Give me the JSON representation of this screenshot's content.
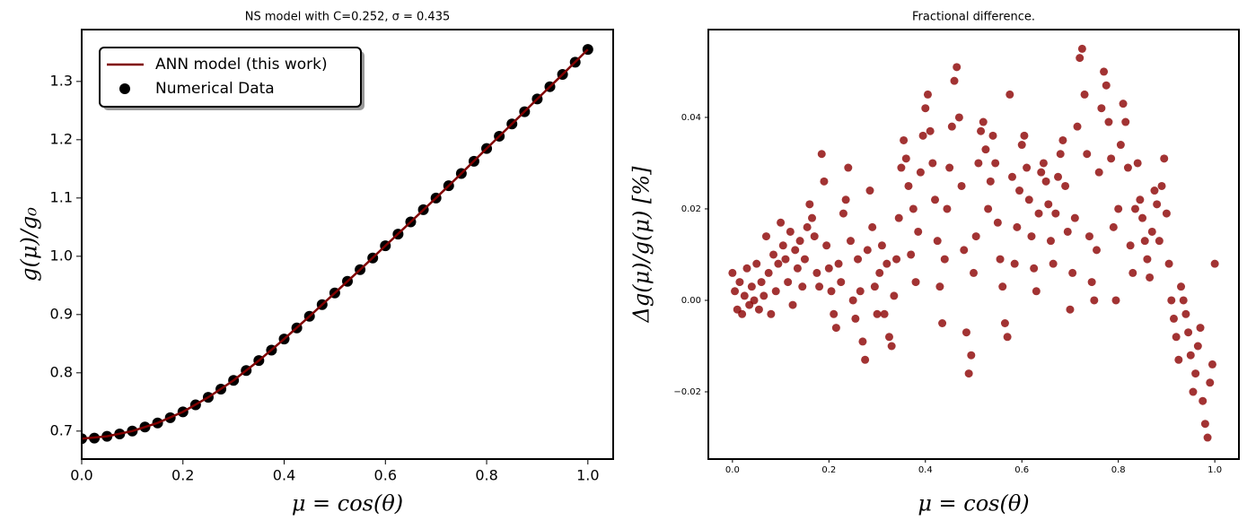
{
  "chart_data": [
    {
      "type": "line",
      "title": "NS model with C=0.252, σ = 0.435",
      "xlabel": "μ = cos(θ)",
      "ylabel": "g(μ)/g₀",
      "xlim": [
        0,
        1.05
      ],
      "ylim": [
        0.652,
        1.389
      ],
      "xticks": [
        {
          "value": 0,
          "label": "0.0"
        },
        0.2,
        0.4,
        0.6,
        0.8,
        {
          "value": 1,
          "label": "1.0"
        }
      ],
      "yticks": [
        0.7,
        0.8,
        0.9,
        {
          "value": 1,
          "label": "1.0"
        },
        1.1,
        1.2,
        1.3
      ],
      "legend": "upper left",
      "series": [
        {
          "name": "ANN model (this work)",
          "type": "line",
          "color": "#800000",
          "x": [
            0,
            0.05,
            0.1,
            0.15,
            0.2,
            0.25,
            0.3,
            0.35,
            0.4,
            0.45,
            0.5,
            0.55,
            0.6,
            0.65,
            0.7,
            0.75,
            0.8,
            0.85,
            0.9,
            0.95,
            1
          ],
          "values": [
            0.687,
            0.691,
            0.7,
            0.714,
            0.733,
            0.758,
            0.787,
            0.821,
            0.858,
            0.897,
            0.937,
            0.977,
            1.018,
            1.059,
            1.1,
            1.142,
            1.185,
            1.227,
            1.27,
            1.312,
            1.355
          ]
        },
        {
          "name": "Numerical Data",
          "type": "scatter",
          "color": "#000000",
          "x": [
            0,
            0.025,
            0.05,
            0.075,
            0.1,
            0.125,
            0.15,
            0.175,
            0.2,
            0.225,
            0.25,
            0.275,
            0.3,
            0.325,
            0.35,
            0.375,
            0.4,
            0.425,
            0.45,
            0.475,
            0.5,
            0.525,
            0.55,
            0.575,
            0.6,
            0.625,
            0.65,
            0.675,
            0.7,
            0.725,
            0.75,
            0.775,
            0.8,
            0.825,
            0.85,
            0.875,
            0.9,
            0.925,
            0.95,
            0.975,
            1
          ],
          "values": [
            0.687,
            0.688,
            0.691,
            0.695,
            0.7,
            0.707,
            0.714,
            0.723,
            0.733,
            0.745,
            0.758,
            0.772,
            0.787,
            0.804,
            0.821,
            0.839,
            0.858,
            0.877,
            0.897,
            0.917,
            0.937,
            0.957,
            0.977,
            0.997,
            1.018,
            1.038,
            1.059,
            1.08,
            1.1,
            1.121,
            1.142,
            1.163,
            1.185,
            1.206,
            1.227,
            1.248,
            1.27,
            1.291,
            1.312,
            1.333,
            1.355
          ]
        }
      ]
    },
    {
      "type": "scatter",
      "title": "Fractional difference.",
      "xlabel": "μ = cos(θ)",
      "ylabel": "Δg(μ)/g(μ)  [%]",
      "xlim": [
        -0.05,
        1.05
      ],
      "ylim": [
        -0.0347,
        0.0592
      ],
      "xticks": [
        {
          "value": 0,
          "label": "0.0"
        },
        0.2,
        0.4,
        0.6,
        0.8,
        {
          "value": 1,
          "label": "1.0"
        }
      ],
      "yticks": [
        {
          "value": -0.02,
          "label": "−0.02"
        },
        {
          "value": 0,
          "label": "0.00"
        },
        0.02,
        0.04
      ],
      "series": [
        {
          "type": "scatter",
          "color": "#8b0000",
          "x": [
            0,
            0.005,
            0.01,
            0.015,
            0.02,
            0.025,
            0.03,
            0.035,
            0.04,
            0.045,
            0.05,
            0.055,
            0.06,
            0.065,
            0.07,
            0.075,
            0.08,
            0.085,
            0.09,
            0.095,
            0.1,
            0.105,
            0.11,
            0.115,
            0.12,
            0.125,
            0.13,
            0.135,
            0.14,
            0.145,
            0.15,
            0.155,
            0.16,
            0.165,
            0.17,
            0.175,
            0.18,
            0.185,
            0.19,
            0.195,
            0.2,
            0.205,
            0.21,
            0.215,
            0.22,
            0.225,
            0.23,
            0.235,
            0.24,
            0.245,
            0.25,
            0.255,
            0.26,
            0.265,
            0.27,
            0.275,
            0.28,
            0.285,
            0.29,
            0.295,
            0.3,
            0.305,
            0.31,
            0.315,
            0.32,
            0.325,
            0.33,
            0.335,
            0.34,
            0.345,
            0.35,
            0.355,
            0.36,
            0.365,
            0.37,
            0.375,
            0.38,
            0.385,
            0.39,
            0.395,
            0.4,
            0.405,
            0.41,
            0.415,
            0.42,
            0.425,
            0.43,
            0.435,
            0.44,
            0.445,
            0.45,
            0.455,
            0.46,
            0.465,
            0.47,
            0.475,
            0.48,
            0.485,
            0.49,
            0.495,
            0.5,
            0.505,
            0.51,
            0.515,
            0.52,
            0.525,
            0.53,
            0.535,
            0.54,
            0.545,
            0.55,
            0.555,
            0.56,
            0.565,
            0.57,
            0.575,
            0.58,
            0.585,
            0.59,
            0.595,
            0.6,
            0.605,
            0.61,
            0.615,
            0.62,
            0.625,
            0.63,
            0.635,
            0.64,
            0.645,
            0.65,
            0.655,
            0.66,
            0.665,
            0.67,
            0.675,
            0.68,
            0.685,
            0.69,
            0.695,
            0.7,
            0.705,
            0.71,
            0.715,
            0.72,
            0.725,
            0.73,
            0.735,
            0.74,
            0.745,
            0.75,
            0.755,
            0.76,
            0.765,
            0.77,
            0.775,
            0.78,
            0.785,
            0.79,
            0.795,
            0.8,
            0.805,
            0.81,
            0.815,
            0.82,
            0.825,
            0.83,
            0.835,
            0.84,
            0.845,
            0.85,
            0.855,
            0.86,
            0.865,
            0.87,
            0.875,
            0.88,
            0.885,
            0.89,
            0.895,
            0.9,
            0.905,
            0.91,
            0.915,
            0.92,
            0.925,
            0.93,
            0.935,
            0.94,
            0.945,
            0.95,
            0.955,
            0.96,
            0.965,
            0.97,
            0.975,
            0.98,
            0.985,
            0.99,
            0.995,
            1
          ],
          "values": [
            0.006,
            0.002,
            -0.002,
            0.004,
            -0.003,
            0.001,
            0.007,
            -0.001,
            0.003,
            0.0,
            0.008,
            -0.002,
            0.004,
            0.001,
            0.014,
            0.006,
            -0.003,
            0.01,
            0.002,
            0.008,
            0.017,
            0.012,
            0.009,
            0.004,
            0.015,
            -0.001,
            0.011,
            0.007,
            0.013,
            0.003,
            0.009,
            0.016,
            0.021,
            0.018,
            0.014,
            0.006,
            0.003,
            0.032,
            0.026,
            0.012,
            0.007,
            0.002,
            -0.003,
            -0.006,
            0.008,
            0.004,
            0.019,
            0.022,
            0.029,
            0.013,
            0.0,
            -0.004,
            0.009,
            0.002,
            -0.009,
            -0.013,
            0.011,
            0.024,
            0.016,
            0.003,
            -0.003,
            0.006,
            0.012,
            -0.003,
            0.008,
            -0.008,
            -0.01,
            0.001,
            0.009,
            0.018,
            0.029,
            0.035,
            0.031,
            0.025,
            0.01,
            0.02,
            0.004,
            0.015,
            0.028,
            0.036,
            0.042,
            0.045,
            0.037,
            0.03,
            0.022,
            0.013,
            0.003,
            -0.005,
            0.009,
            0.02,
            0.029,
            0.038,
            0.048,
            0.051,
            0.04,
            0.025,
            0.011,
            -0.007,
            -0.016,
            -0.012,
            0.006,
            0.014,
            0.03,
            0.037,
            0.039,
            0.033,
            0.02,
            0.026,
            0.036,
            0.03,
            0.017,
            0.009,
            0.003,
            -0.005,
            -0.008,
            0.045,
            0.027,
            0.008,
            0.016,
            0.024,
            0.034,
            0.036,
            0.029,
            0.022,
            0.014,
            0.007,
            0.002,
            0.019,
            0.028,
            0.03,
            0.026,
            0.021,
            0.013,
            0.008,
            0.019,
            0.027,
            0.032,
            0.035,
            0.025,
            0.015,
            -0.002,
            0.006,
            0.018,
            0.038,
            0.053,
            0.055,
            0.045,
            0.032,
            0.014,
            0.004,
            0.0,
            0.011,
            0.028,
            0.042,
            0.05,
            0.047,
            0.039,
            0.031,
            0.016,
            0.0,
            0.02,
            0.034,
            0.043,
            0.039,
            0.029,
            0.012,
            0.006,
            0.02,
            0.03,
            0.022,
            0.018,
            0.013,
            0.009,
            0.005,
            0.015,
            0.024,
            0.021,
            0.013,
            0.025,
            0.031,
            0.019,
            0.008,
            0.0,
            -0.004,
            -0.008,
            -0.013,
            0.003,
            0.0,
            -0.003,
            -0.007,
            -0.012,
            -0.02,
            -0.016,
            -0.01,
            -0.006,
            -0.022,
            -0.027,
            -0.03,
            -0.018,
            -0.014,
            0.008
          ]
        }
      ]
    }
  ]
}
